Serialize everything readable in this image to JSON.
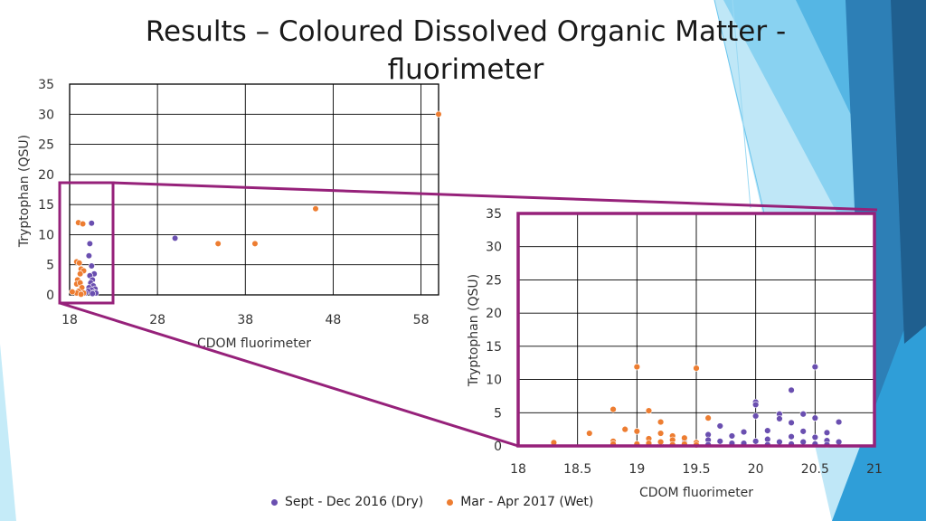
{
  "slide": {
    "title": "Results – Coloured Dissolved Organic Matter - fluorimeter"
  },
  "colors": {
    "dry": "#6a4fb0",
    "wet": "#ed7d31",
    "zoom_frame": "#96217a",
    "accent_light": "#7fcef0",
    "accent_mid": "#2ea8dd",
    "accent_dark": "#1f5f8f"
  },
  "legend": {
    "dry_label": "Sept - Dec 2016 (Dry)",
    "wet_label": "Mar - Apr 2017 (Wet)"
  },
  "chart_data": [
    {
      "id": "overview",
      "type": "scatter",
      "xlabel": "CDOM fluorimeter",
      "ylabel": "Tryptophan (QSU)",
      "xlim": [
        18,
        60
      ],
      "ylim": [
        0,
        35
      ],
      "xticks": [
        "18",
        "28",
        "38",
        "48",
        "58"
      ],
      "xtick_values": [
        18,
        28,
        38,
        48,
        58
      ],
      "yticks": [
        "0",
        "5",
        "10",
        "15",
        "20",
        "25",
        "30",
        "35"
      ],
      "ytick_values": [
        0,
        5,
        10,
        15,
        20,
        25,
        30,
        35
      ],
      "grid": true,
      "series": [
        {
          "name": "Sept - Dec 2016 (Dry)",
          "points": [
            [
              20.5,
              11.9
            ],
            [
              20.3,
              8.5
            ],
            [
              20.2,
              6.5
            ],
            [
              20.5,
              4.8
            ],
            [
              20.8,
              3.5
            ],
            [
              20.3,
              3.2
            ],
            [
              20.6,
              2.5
            ],
            [
              20.4,
              2
            ],
            [
              20.7,
              1.5
            ],
            [
              20.9,
              1
            ],
            [
              20.2,
              1.2
            ],
            [
              20.5,
              0.8
            ],
            [
              20.8,
              0.4
            ],
            [
              21,
              0.3
            ],
            [
              20.1,
              0.6
            ],
            [
              20.6,
              0.2
            ],
            [
              19.8,
              0.3
            ],
            [
              19.5,
              0.2
            ],
            [
              30,
              9.4
            ]
          ]
        },
        {
          "name": "Mar - Apr 2017 (Wet)",
          "points": [
            [
              19,
              12
            ],
            [
              19.5,
              11.8
            ],
            [
              18.8,
              5.5
            ],
            [
              19.1,
              5.3
            ],
            [
              19.3,
              4.3
            ],
            [
              19.6,
              4
            ],
            [
              19.2,
              3.5
            ],
            [
              18.9,
              2.5
            ],
            [
              18.8,
              1.8
            ],
            [
              19.2,
              2
            ],
            [
              19.4,
              1.2
            ],
            [
              19,
              0.6
            ],
            [
              18.8,
              0.3
            ],
            [
              18.3,
              0.5
            ],
            [
              19.6,
              0.3
            ],
            [
              19.3,
              0.1
            ],
            [
              34.9,
              8.5
            ],
            [
              39.1,
              8.5
            ],
            [
              46,
              14.3
            ],
            [
              60,
              30
            ]
          ]
        }
      ]
    },
    {
      "id": "zoom",
      "type": "scatter",
      "xlabel": "CDOM fluorimeter",
      "ylabel": "Tryptophan (QSU)",
      "xlim": [
        18,
        21
      ],
      "ylim": [
        0,
        35
      ],
      "xticks": [
        "18",
        "18.5",
        "19",
        "19.5",
        "20",
        "20.5",
        "21"
      ],
      "xtick_values": [
        18,
        18.5,
        19,
        19.5,
        20,
        20.5,
        21
      ],
      "yticks": [
        "0",
        "5",
        "10",
        "15",
        "20",
        "25",
        "30",
        "35"
      ],
      "ytick_values": [
        0,
        5,
        10,
        15,
        20,
        25,
        30,
        35
      ],
      "grid": true,
      "series": [
        {
          "name": "Sept - Dec 2016 (Dry)",
          "points": [
            [
              20.5,
              11.9
            ],
            [
              20.3,
              8.4
            ],
            [
              20,
              6.6
            ],
            [
              20,
              6.2
            ],
            [
              20.2,
              4.8
            ],
            [
              20.4,
              4.8
            ],
            [
              20,
              4.5
            ],
            [
              20.2,
              4.1
            ],
            [
              20.5,
              4.2
            ],
            [
              20.7,
              3.6
            ],
            [
              20.3,
              3.5
            ],
            [
              19.7,
              3
            ],
            [
              20.1,
              2.3
            ],
            [
              19.9,
              2.1
            ],
            [
              20.4,
              2.2
            ],
            [
              20.6,
              2
            ],
            [
              19.6,
              1.7
            ],
            [
              19.8,
              1.5
            ],
            [
              20.3,
              1.4
            ],
            [
              20.5,
              1.3
            ],
            [
              20.1,
              1
            ],
            [
              19.6,
              0.9
            ],
            [
              19.7,
              0.7
            ],
            [
              20,
              0.7
            ],
            [
              20.2,
              0.6
            ],
            [
              20.4,
              0.6
            ],
            [
              20.6,
              0.8
            ],
            [
              20.7,
              0.6
            ],
            [
              19.4,
              0.5
            ],
            [
              19.5,
              0.5
            ],
            [
              19.8,
              0.4
            ],
            [
              19.9,
              0.4
            ],
            [
              20.3,
              0.3
            ],
            [
              20.5,
              0.3
            ],
            [
              19.6,
              0.2
            ],
            [
              20.1,
              0.2
            ],
            [
              20.6,
              0.2
            ],
            [
              19.3,
              0.3
            ],
            [
              19.2,
              0.2
            ]
          ]
        },
        {
          "name": "Mar - Apr 2017 (Wet)",
          "points": [
            [
              19,
              11.9
            ],
            [
              19.5,
              11.7
            ],
            [
              18.8,
              5.5
            ],
            [
              19.1,
              5.3
            ],
            [
              19.6,
              4.2
            ],
            [
              19.2,
              3.6
            ],
            [
              18.9,
              2.5
            ],
            [
              19,
              2.2
            ],
            [
              18.6,
              1.9
            ],
            [
              19.2,
              1.9
            ],
            [
              19.3,
              1.5
            ],
            [
              19.4,
              1.2
            ],
            [
              19.1,
              1.1
            ],
            [
              19.3,
              0.9
            ],
            [
              18.8,
              0.7
            ],
            [
              19.2,
              0.6
            ],
            [
              19.5,
              0.5
            ],
            [
              19.4,
              0.3
            ],
            [
              18.3,
              0.5
            ],
            [
              18.8,
              0.3
            ],
            [
              19,
              0.3
            ],
            [
              19.1,
              0.4
            ],
            [
              19.3,
              0.2
            ],
            [
              19.5,
              0.15
            ]
          ]
        }
      ]
    }
  ]
}
